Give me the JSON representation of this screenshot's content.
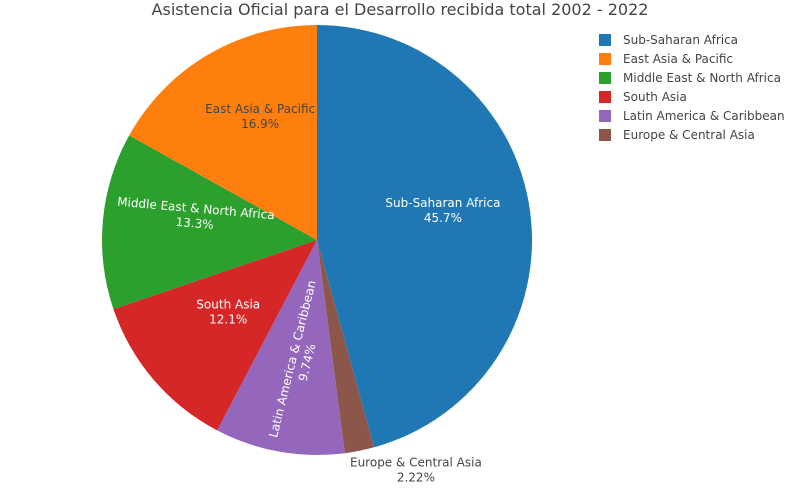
{
  "chart_data": {
    "type": "pie",
    "title": "Asistencia Oficial para el Desarrollo recibida total 2002 - 2022",
    "legend_position": "top-right",
    "slices": [
      {
        "label": "Sub-Saharan Africa",
        "percent_text": "45.7%",
        "value": 45.7,
        "color": "#1f77b4",
        "text_color": "#ffffff",
        "label_mode": "inside"
      },
      {
        "label": "Europe & Central Asia",
        "percent_text": "2.22%",
        "value": 2.22,
        "color": "#8c564b",
        "text_color": "#444444",
        "label_mode": "outside"
      },
      {
        "label": "Latin America & Caribbean",
        "percent_text": "9.74%",
        "value": 9.74,
        "color": "#9467bd",
        "text_color": "#ffffff",
        "label_mode": "inside-rotated"
      },
      {
        "label": "South Asia",
        "percent_text": "12.1%",
        "value": 12.1,
        "color": "#d62728",
        "text_color": "#ffffff",
        "label_mode": "inside"
      },
      {
        "label": "Middle East & North Africa",
        "percent_text": "13.3%",
        "value": 13.3,
        "color": "#2ca02c",
        "text_color": "#ffffff",
        "label_mode": "inside-tilted"
      },
      {
        "label": "East Asia & Pacific",
        "percent_text": "16.9%",
        "value": 16.9,
        "color": "#ff7f0e",
        "text_color": "#444444",
        "label_mode": "inside"
      }
    ],
    "legend": [
      {
        "label": "Sub-Saharan Africa",
        "color": "#1f77b4"
      },
      {
        "label": "East Asia & Pacific",
        "color": "#ff7f0e"
      },
      {
        "label": "Middle East & North Africa",
        "color": "#2ca02c"
      },
      {
        "label": "South Asia",
        "color": "#d62728"
      },
      {
        "label": "Latin America & Caribbean",
        "color": "#9467bd"
      },
      {
        "label": "Europe & Central Asia",
        "color": "#8c564b"
      }
    ]
  }
}
